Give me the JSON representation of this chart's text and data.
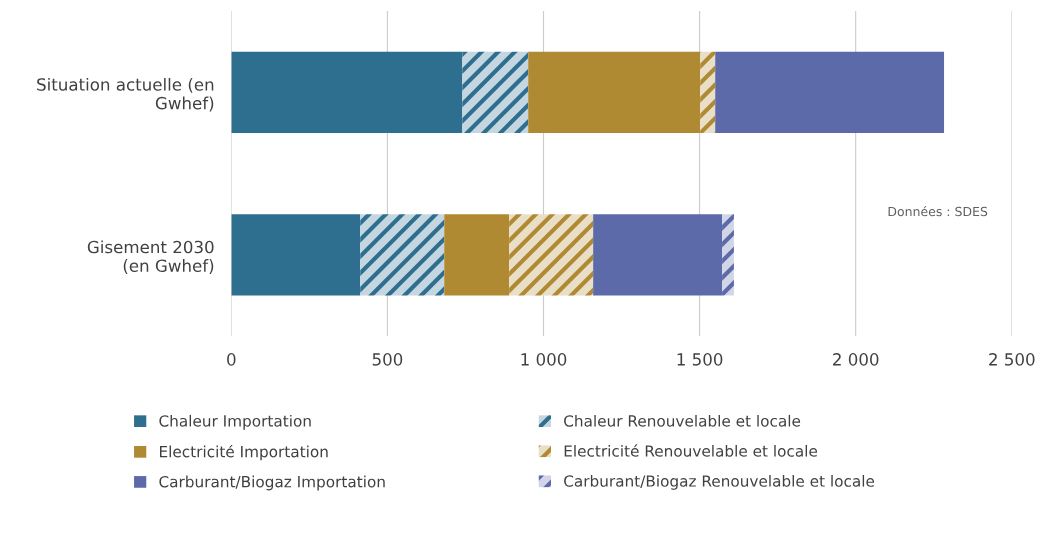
{
  "chart_data": {
    "type": "bar",
    "orientation": "horizontal",
    "stacked": true,
    "categories": [
      "Situation actuelle (en\nGwhef)",
      "Gisement 2030\n(en Gwhef)"
    ],
    "series": [
      {
        "name": "Chaleur Importation",
        "color": "#2e6e8e",
        "values": [
          740,
          413
        ]
      },
      {
        "name": "Chaleur Renouvelable et locale",
        "color": "#2e6e8e",
        "values": [
          211,
          269
        ]
      },
      {
        "name": "Electricité Importation",
        "color": "#b08a33",
        "values": [
          551,
          208
        ]
      },
      {
        "name": "Electricité Renouvelable et locale",
        "color": "#b08a33",
        "values": [
          48,
          269
        ]
      },
      {
        "name": "Carburant/Biogaz Importation",
        "color": "#5d6aaa",
        "values": [
          733,
          413
        ]
      },
      {
        "name": "Carburant/Biogaz Renouvelable et locale",
        "color": "#5d6aaa",
        "values": [
          null,
          38
        ]
      }
    ],
    "xlim": [
      0,
      2500
    ],
    "xticks": [
      0,
      500,
      {
        "value": 1000,
        "label": "1 000"
      },
      {
        "value": 1500,
        "label": "1 500"
      },
      {
        "value": 2000,
        "label": "2 000"
      },
      {
        "value": 2500,
        "label": "2 500"
      }
    ],
    "grid": "x",
    "legend": "bottom",
    "annotations": [
      "Données : SDES"
    ]
  }
}
